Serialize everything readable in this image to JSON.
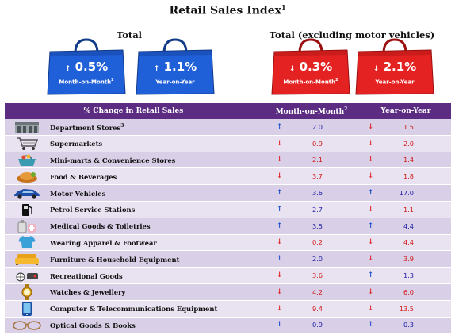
{
  "title": "Retail Sales Index",
  "title_sup": "1",
  "groups": {
    "total": "Total",
    "excl": "Total (excluding motor vehicles)"
  },
  "bags": [
    {
      "value": "0.5%",
      "label": "Month-on-Month",
      "sup": "2",
      "direction": "up",
      "color": "#1f5fd8"
    },
    {
      "value": "1.1%",
      "label": "Year-on-Year",
      "sup": "",
      "direction": "up",
      "color": "#1f5fd8"
    },
    {
      "value": "0.3%",
      "label": "Month-on-Month",
      "sup": "2",
      "direction": "down",
      "color": "#e52222"
    },
    {
      "value": "2.1%",
      "label": "Year-on-Year",
      "sup": "",
      "direction": "down",
      "color": "#e52222"
    }
  ],
  "header": {
    "category": "% Change in Retail Sales",
    "mom": "Month-on-Month",
    "mom_sup": "2",
    "yoy": "Year-on-Year"
  },
  "rows": [
    {
      "icon": "department-store-icon",
      "name": "Department Stores",
      "sup": "3",
      "mom": "2.0",
      "mom_dir": "up",
      "yoy": "1.5",
      "yoy_dir": "down"
    },
    {
      "icon": "shopping-cart-icon",
      "name": "Supermarkets",
      "sup": "",
      "mom": "0.9",
      "mom_dir": "down",
      "yoy": "2.0",
      "yoy_dir": "down"
    },
    {
      "icon": "shopping-basket-icon",
      "name": "Mini-marts & Convenience Stores",
      "sup": "",
      "mom": "2.1",
      "mom_dir": "down",
      "yoy": "1.4",
      "yoy_dir": "down"
    },
    {
      "icon": "food-icon",
      "name": "Food & Beverages",
      "sup": "",
      "mom": "3.7",
      "mom_dir": "down",
      "yoy": "1.8",
      "yoy_dir": "down"
    },
    {
      "icon": "car-icon",
      "name": "Motor Vehicles",
      "sup": "",
      "mom": "3.6",
      "mom_dir": "up",
      "yoy": "17.0",
      "yoy_dir": "up"
    },
    {
      "icon": "fuel-pump-icon",
      "name": "Petrol Service Stations",
      "sup": "",
      "mom": "2.7",
      "mom_dir": "up",
      "yoy": "1.1",
      "yoy_dir": "down"
    },
    {
      "icon": "medical-icon",
      "name": "Medical Goods & Toiletries",
      "sup": "",
      "mom": "3.5",
      "mom_dir": "up",
      "yoy": "4.4",
      "yoy_dir": "up"
    },
    {
      "icon": "shirt-icon",
      "name": "Wearing Apparel & Footwear",
      "sup": "",
      "mom": "0.2",
      "mom_dir": "down",
      "yoy": "4.4",
      "yoy_dir": "down"
    },
    {
      "icon": "sofa-icon",
      "name": "Furniture & Household Equipment",
      "sup": "",
      "mom": "2.0",
      "mom_dir": "up",
      "yoy": "3.9",
      "yoy_dir": "down"
    },
    {
      "icon": "recreation-icon",
      "name": "Recreational Goods",
      "sup": "",
      "mom": "3.6",
      "mom_dir": "down",
      "yoy": "1.3",
      "yoy_dir": "up"
    },
    {
      "icon": "watch-icon",
      "name": "Watches & Jewellery",
      "sup": "",
      "mom": "4.2",
      "mom_dir": "down",
      "yoy": "6.0",
      "yoy_dir": "down"
    },
    {
      "icon": "phone-icon",
      "name": "Computer & Telecommunications Equipment",
      "sup": "",
      "mom": "9.4",
      "mom_dir": "down",
      "yoy": "13.5",
      "yoy_dir": "down"
    },
    {
      "icon": "glasses-icon",
      "name": "Optical Goods & Books",
      "sup": "",
      "mom": "0.9",
      "mom_dir": "up",
      "yoy": "0.3",
      "yoy_dir": "up"
    }
  ],
  "colors": {
    "header_bg": "#5b2c82",
    "row_odd": "#d9cfe6",
    "row_even": "#e9e2f1",
    "up": "#1146c8",
    "down": "#e01818"
  }
}
